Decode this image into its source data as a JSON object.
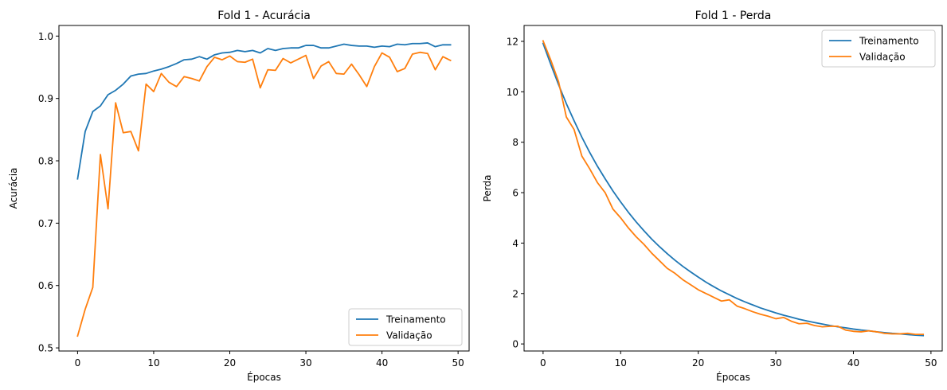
{
  "chart_data": [
    {
      "type": "line",
      "title": "Fold 1 - Acurácia",
      "xlabel": "Épocas",
      "ylabel": "Acurácia",
      "xlim": [
        -2.45,
        51.45
      ],
      "ylim": [
        0.495,
        1.017
      ],
      "xticks": [
        0,
        10,
        20,
        30,
        40,
        50
      ],
      "yticks": [
        0.5,
        0.6,
        0.7,
        0.8,
        0.9,
        1.0
      ],
      "ytick_labels": [
        "0.5",
        "0.6",
        "0.7",
        "0.8",
        "0.9",
        "1.0"
      ],
      "grid": false,
      "legend_position": "lower-right",
      "series": [
        {
          "name": "Treinamento",
          "color": "#1f77b4",
          "values": [
            0.771,
            0.847,
            0.879,
            0.888,
            0.906,
            0.913,
            0.923,
            0.936,
            0.939,
            0.94,
            0.944,
            0.947,
            0.951,
            0.956,
            0.962,
            0.963,
            0.967,
            0.963,
            0.97,
            0.973,
            0.974,
            0.977,
            0.975,
            0.977,
            0.973,
            0.98,
            0.977,
            0.98,
            0.981,
            0.981,
            0.985,
            0.985,
            0.981,
            0.981,
            0.984,
            0.987,
            0.985,
            0.984,
            0.984,
            0.982,
            0.984,
            0.983,
            0.987,
            0.986,
            0.988,
            0.988,
            0.989,
            0.983,
            0.986,
            0.986
          ]
        },
        {
          "name": "Validação",
          "color": "#ff7f0e",
          "values": [
            0.519,
            0.562,
            0.597,
            0.81,
            0.723,
            0.893,
            0.845,
            0.847,
            0.816,
            0.923,
            0.911,
            0.94,
            0.926,
            0.919,
            0.935,
            0.932,
            0.928,
            0.951,
            0.966,
            0.962,
            0.968,
            0.959,
            0.958,
            0.963,
            0.917,
            0.946,
            0.945,
            0.964,
            0.957,
            0.963,
            0.969,
            0.932,
            0.952,
            0.959,
            0.94,
            0.939,
            0.955,
            0.938,
            0.919,
            0.951,
            0.973,
            0.966,
            0.943,
            0.948,
            0.971,
            0.974,
            0.972,
            0.946,
            0.967,
            0.961
          ]
        }
      ]
    },
    {
      "type": "line",
      "title": "Fold 1 - Perda",
      "xlabel": "Épocas",
      "ylabel": "Perda",
      "xlim": [
        -2.45,
        51.45
      ],
      "ylim": [
        -0.28,
        12.63
      ],
      "xticks": [
        0,
        10,
        20,
        30,
        40,
        50
      ],
      "yticks": [
        0,
        2,
        4,
        6,
        8,
        10,
        12
      ],
      "ytick_labels": [
        "0",
        "2",
        "4",
        "6",
        "8",
        "10",
        "12"
      ],
      "grid": false,
      "legend_position": "upper-right",
      "series": [
        {
          "name": "Treinamento",
          "color": "#1f77b4",
          "values": [
            11.92,
            11.08,
            10.28,
            9.53,
            8.85,
            8.2,
            7.6,
            7.05,
            6.55,
            6.07,
            5.63,
            5.22,
            4.84,
            4.49,
            4.16,
            3.86,
            3.58,
            3.32,
            3.08,
            2.86,
            2.65,
            2.45,
            2.27,
            2.1,
            1.95,
            1.8,
            1.67,
            1.55,
            1.43,
            1.33,
            1.23,
            1.14,
            1.06,
            0.98,
            0.91,
            0.85,
            0.79,
            0.73,
            0.68,
            0.64,
            0.59,
            0.55,
            0.52,
            0.48,
            0.45,
            0.42,
            0.4,
            0.37,
            0.35,
            0.33
          ]
        },
        {
          "name": "Validação",
          "color": "#ff7f0e",
          "values": [
            12.02,
            11.25,
            10.4,
            9.0,
            8.5,
            7.45,
            6.95,
            6.4,
            6.0,
            5.35,
            5.0,
            4.6,
            4.25,
            3.95,
            3.6,
            3.3,
            3.0,
            2.8,
            2.55,
            2.35,
            2.15,
            2.0,
            1.85,
            1.7,
            1.75,
            1.5,
            1.4,
            1.28,
            1.18,
            1.1,
            1.0,
            1.05,
            0.9,
            0.8,
            0.82,
            0.73,
            0.68,
            0.7,
            0.7,
            0.55,
            0.5,
            0.48,
            0.52,
            0.48,
            0.42,
            0.4,
            0.4,
            0.42,
            0.38,
            0.38
          ]
        }
      ]
    }
  ]
}
